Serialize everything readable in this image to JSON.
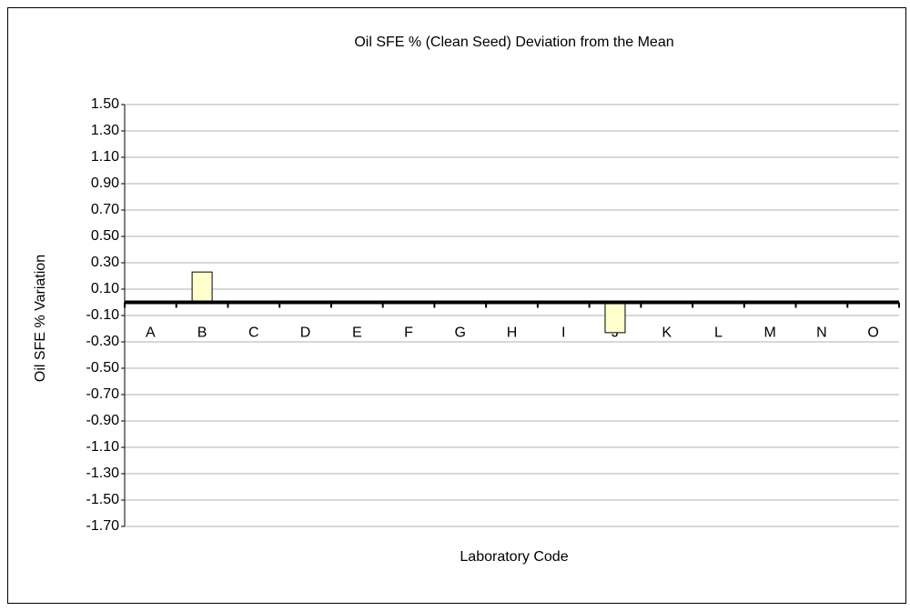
{
  "chart_data": {
    "type": "bar",
    "title": "Oil SFE % (Clean Seed) Deviation from the Mean",
    "x_label": "Laboratory Code",
    "y_label": "Oil SFE % Variation",
    "categories": [
      "A",
      "B",
      "C",
      "D",
      "E",
      "F",
      "G",
      "H",
      "I",
      "J",
      "K",
      "L",
      "M",
      "N",
      "O"
    ],
    "values": [
      0,
      0.23,
      0,
      0,
      0,
      0,
      0,
      0,
      0,
      -0.23,
      0,
      0,
      0,
      0,
      0
    ],
    "color": "#ffffcc",
    "ylim": [
      -1.7,
      1.5
    ],
    "yticks": [
      {
        "value": 1.5,
        "label": "1.50"
      },
      {
        "value": 1.3,
        "label": "1.30"
      },
      {
        "value": 1.1,
        "label": "1.10"
      },
      {
        "value": 0.9,
        "label": "0.90"
      },
      {
        "value": 0.7,
        "label": "0.70"
      },
      {
        "value": 0.5,
        "label": "0.50"
      },
      {
        "value": 0.3,
        "label": "0.30"
      },
      {
        "value": 0.1,
        "label": "0.10"
      },
      {
        "value": -0.1,
        "label": "-0.10"
      },
      {
        "value": -0.3,
        "label": "-0.30"
      },
      {
        "value": -0.5,
        "label": "-0.50"
      },
      {
        "value": -0.7,
        "label": "-0.70"
      },
      {
        "value": -0.9,
        "label": "-0.90"
      },
      {
        "value": -1.1,
        "label": "-1.10"
      },
      {
        "value": -1.3,
        "label": "-1.30"
      },
      {
        "value": -1.5,
        "label": "-1.50"
      },
      {
        "value": -1.7,
        "label": "-1.70"
      }
    ],
    "grid": true
  }
}
